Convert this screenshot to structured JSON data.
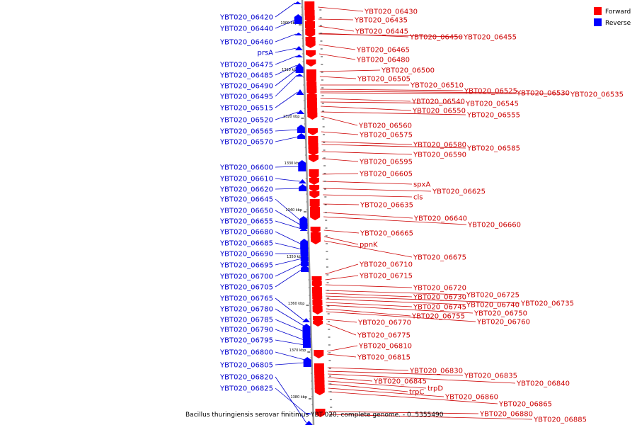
{
  "caption": "Bacillus thuringiensis serovar finitimus YBT-020, complete genome. - 0..5355490",
  "legend": [
    {
      "label": "Forward",
      "color": "#ff0000"
    },
    {
      "label": "Reverse",
      "color": "#0000ff"
    }
  ],
  "colors": {
    "forward": "#cc0000",
    "reverse": "#0000cc",
    "axis": "#999999"
  },
  "ticks": [
    "1300 kbp",
    "1310 kbp",
    "1320 kbp",
    "1330 kbp",
    "1340 kbp",
    "1350 kbp",
    "1360 kbp",
    "1370 kbp",
    "1380 kbp"
  ],
  "reverse_genes": [
    "YBT020_06420",
    "YBT020_06440",
    "YBT020_06460",
    "prsA",
    "YBT020_06475",
    "YBT020_06485",
    "YBT020_06490",
    "YBT020_06495",
    "YBT020_06515",
    "YBT020_06520",
    "YBT020_06565",
    "YBT020_06570",
    "YBT020_06600",
    "YBT020_06610",
    "YBT020_06620",
    "YBT020_06645",
    "YBT020_06650",
    "YBT020_06655",
    "YBT020_06680",
    "YBT020_06685",
    "YBT020_06690",
    "YBT020_06695",
    "YBT020_06700",
    "YBT020_06705",
    "YBT020_06765",
    "YBT020_06780",
    "YBT020_06785",
    "YBT020_06790",
    "YBT020_06795",
    "YBT020_06800",
    "YBT020_06805",
    "YBT020_06820",
    "YBT020_06825"
  ],
  "forward_genes": [
    "YBT020_06430",
    "YBT020_06435",
    "YBT020_06445",
    "YBT020_06450",
    "YBT020_06455",
    "YBT020_06465",
    "YBT020_06480",
    "YBT020_06500",
    "YBT020_06505",
    "YBT020_06510",
    "YBT020_06525",
    "YBT020_06530",
    "YBT020_06535",
    "YBT020_06540",
    "YBT020_06545",
    "YBT020_06550",
    "YBT020_06555",
    "YBT020_06560",
    "YBT020_06575",
    "YBT020_06580",
    "YBT020_06585",
    "YBT020_06590",
    "YBT020_06595",
    "YBT020_06605",
    "spxA",
    "YBT020_06625",
    "cls",
    "YBT020_06635",
    "YBT020_06640",
    "YBT020_06660",
    "YBT020_06665",
    "ppnK",
    "YBT020_06675",
    "YBT020_06710",
    "YBT020_06715",
    "YBT020_06720",
    "YBT020_06725",
    "YBT020_06730",
    "YBT020_06735",
    "YBT020_06740",
    "YBT020_06745",
    "YBT020_06750",
    "YBT020_06755",
    "YBT020_06760",
    "YBT020_06770",
    "YBT020_06775",
    "YBT020_06810",
    "YBT020_06815",
    "YBT020_06830",
    "YBT020_06835",
    "YBT020_06840",
    "YBT020_06845",
    "trpD",
    "trpC",
    "YBT020_06860",
    "YBT020_06865",
    "YBT020_06880",
    "YBT020_06885"
  ]
}
